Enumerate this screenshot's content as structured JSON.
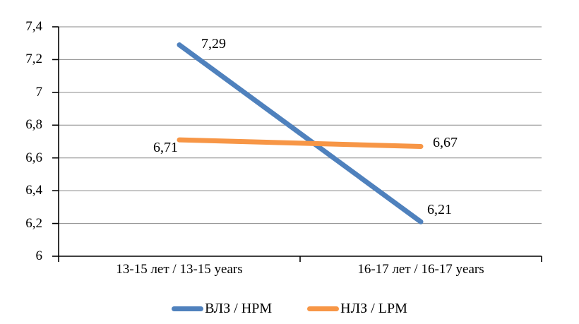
{
  "chart_data": {
    "type": "line",
    "categories": [
      "13-15 лет / 13-15 years",
      "16-17 лет / 16-17 years"
    ],
    "series": [
      {
        "name": "ВЛЗ / НРМ",
        "values": [
          7.29,
          6.21
        ],
        "point_labels": [
          "7,29",
          "6,21"
        ],
        "color": "#4F81BD",
        "label_placement": [
          {
            "dx": 31,
            "dy": -2,
            "anchor": "start"
          },
          {
            "dx": 9,
            "dy": -17,
            "anchor": "start"
          }
        ]
      },
      {
        "name": "НЛЗ / LPM",
        "values": [
          6.71,
          6.67
        ],
        "point_labels": [
          "6,71",
          "6,67"
        ],
        "color": "#F79646",
        "label_placement": [
          {
            "dx": -2,
            "dy": 11,
            "anchor": "end"
          },
          {
            "dx": 17,
            "dy": -5,
            "anchor": "start"
          }
        ]
      }
    ],
    "title": "",
    "xlabel": "",
    "ylabel": "",
    "ylim": [
      6,
      7.4
    ],
    "yticks": [
      6,
      6.2,
      6.4,
      6.6,
      6.8,
      7,
      7.2,
      7.4
    ],
    "ytick_labels": [
      "6",
      "6,2",
      "6,4",
      "6,6",
      "6,8",
      "7",
      "7,2",
      "7,4"
    ],
    "grid": true,
    "legend_position": "bottom",
    "colors": {
      "gridline": "#898989",
      "axis": "#000000",
      "text": "#000000",
      "background": "#ffffff"
    }
  }
}
